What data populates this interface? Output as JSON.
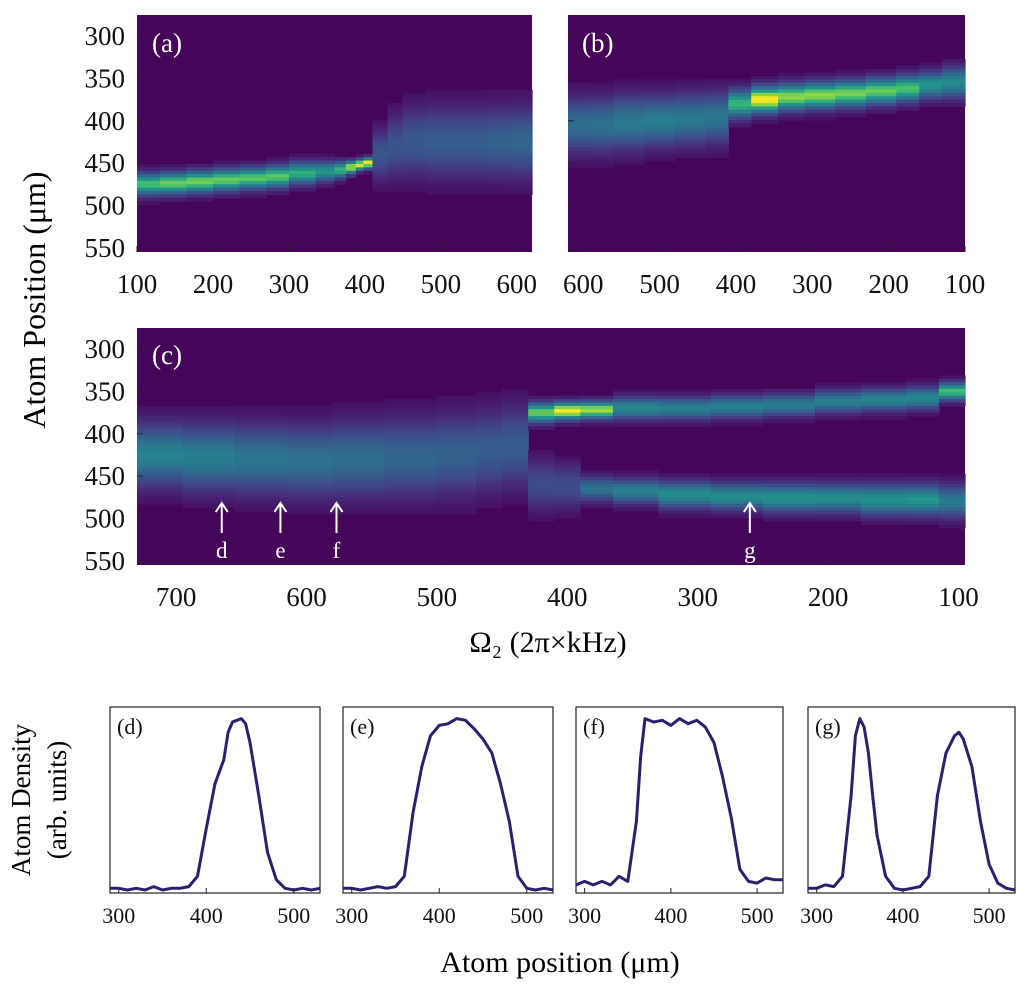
{
  "figure": {
    "shared_ylabel_heatmaps": "Atom Position (μm)",
    "shared_ylabel_profiles": [
      "Atom Density",
      "(arb. units)"
    ],
    "xlabel_heatmaps": "Ω₂ (2π×kHz)",
    "xlabel_profiles": "Atom position (μm)"
  },
  "colors": {
    "viridis_low": "#440154",
    "viridis_background": "#3b0f70",
    "line": "#2e1f6e",
    "arrow": "#ffffff"
  },
  "chart_data": [
    {
      "id": "a",
      "type": "heatmap",
      "panel_label": "(a)",
      "x_range": [
        100,
        620
      ],
      "x_ticks": [
        100,
        200,
        300,
        400,
        500,
        600
      ],
      "y_range": [
        275,
        555
      ],
      "y_ticks": [
        300,
        350,
        400,
        450,
        500,
        550
      ],
      "y_reversed": true,
      "columns": [
        {
          "x0": 100,
          "x1": 130,
          "c": 475,
          "w": 20,
          "a": 0.75
        },
        {
          "x0": 130,
          "x1": 165,
          "c": 474,
          "w": 20,
          "a": 0.8
        },
        {
          "x0": 165,
          "x1": 200,
          "c": 472,
          "w": 20,
          "a": 0.82
        },
        {
          "x0": 200,
          "x1": 235,
          "c": 470,
          "w": 20,
          "a": 0.8
        },
        {
          "x0": 235,
          "x1": 270,
          "c": 468,
          "w": 20,
          "a": 0.78
        },
        {
          "x0": 270,
          "x1": 300,
          "c": 466,
          "w": 20,
          "a": 0.78
        },
        {
          "x0": 300,
          "x1": 335,
          "c": 462,
          "w": 20,
          "a": 0.7
        },
        {
          "x0": 335,
          "x1": 360,
          "c": 460,
          "w": 18,
          "a": 0.62
        },
        {
          "x0": 360,
          "x1": 375,
          "c": 458,
          "w": 15,
          "a": 0.72
        },
        {
          "x0": 375,
          "x1": 388,
          "c": 455,
          "w": 12,
          "a": 0.88
        },
        {
          "x0": 388,
          "x1": 398,
          "c": 452,
          "w": 10,
          "a": 0.95
        },
        {
          "x0": 398,
          "x1": 410,
          "c": 450,
          "w": 10,
          "a": 0.98
        },
        {
          "x0": 410,
          "x1": 430,
          "c": 440,
          "w": 45,
          "a": 0.3
        },
        {
          "x0": 430,
          "x1": 450,
          "c": 430,
          "w": 55,
          "a": 0.3
        },
        {
          "x0": 450,
          "x1": 480,
          "c": 425,
          "w": 60,
          "a": 0.32
        },
        {
          "x0": 480,
          "x1": 520,
          "c": 425,
          "w": 62,
          "a": 0.34
        },
        {
          "x0": 520,
          "x1": 560,
          "c": 425,
          "w": 62,
          "a": 0.34
        },
        {
          "x0": 560,
          "x1": 590,
          "c": 425,
          "w": 62,
          "a": 0.36
        },
        {
          "x0": 590,
          "x1": 620,
          "c": 425,
          "w": 62,
          "a": 0.38
        }
      ]
    },
    {
      "id": "b",
      "type": "heatmap",
      "panel_label": "(b)",
      "x_range": [
        620,
        100
      ],
      "x_ticks": [
        600,
        500,
        400,
        300,
        200,
        100
      ],
      "y_range": [
        275,
        555
      ],
      "y_ticks": [
        300,
        350,
        400,
        450,
        500,
        550
      ],
      "y_reversed": true,
      "columns": [
        {
          "x0": 620,
          "x1": 590,
          "c": 405,
          "w": 48,
          "a": 0.42
        },
        {
          "x0": 590,
          "x1": 560,
          "c": 405,
          "w": 48,
          "a": 0.44
        },
        {
          "x0": 560,
          "x1": 520,
          "c": 402,
          "w": 48,
          "a": 0.48
        },
        {
          "x0": 520,
          "x1": 480,
          "c": 400,
          "w": 45,
          "a": 0.5
        },
        {
          "x0": 480,
          "x1": 440,
          "c": 398,
          "w": 45,
          "a": 0.48
        },
        {
          "x0": 440,
          "x1": 410,
          "c": 396,
          "w": 45,
          "a": 0.46
        },
        {
          "x0": 410,
          "x1": 380,
          "c": 380,
          "w": 26,
          "a": 0.72
        },
        {
          "x0": 380,
          "x1": 345,
          "c": 375,
          "w": 24,
          "a": 0.98
        },
        {
          "x0": 345,
          "x1": 310,
          "c": 372,
          "w": 24,
          "a": 0.85
        },
        {
          "x0": 310,
          "x1": 270,
          "c": 370,
          "w": 24,
          "a": 0.85
        },
        {
          "x0": 270,
          "x1": 230,
          "c": 368,
          "w": 24,
          "a": 0.82
        },
        {
          "x0": 230,
          "x1": 190,
          "c": 365,
          "w": 24,
          "a": 0.8
        },
        {
          "x0": 190,
          "x1": 160,
          "c": 362,
          "w": 24,
          "a": 0.76
        },
        {
          "x0": 160,
          "x1": 130,
          "c": 358,
          "w": 24,
          "a": 0.62
        },
        {
          "x0": 130,
          "x1": 100,
          "c": 355,
          "w": 28,
          "a": 0.56
        }
      ]
    },
    {
      "id": "c",
      "type": "heatmap",
      "panel_label": "(c)",
      "x_range": [
        730,
        95
      ],
      "x_ticks": [
        700,
        600,
        500,
        400,
        300,
        200,
        100
      ],
      "y_range": [
        275,
        555
      ],
      "y_ticks": [
        300,
        350,
        400,
        450,
        500,
        550
      ],
      "y_reversed": true,
      "arrows": [
        {
          "x": 665,
          "label": "d"
        },
        {
          "x": 620,
          "label": "e"
        },
        {
          "x": 577,
          "label": "f"
        },
        {
          "x": 260,
          "label": "g"
        }
      ],
      "columns": [
        {
          "x0": 730,
          "x1": 695,
          "c": 425,
          "w": 55,
          "a": 0.52
        },
        {
          "x0": 695,
          "x1": 655,
          "c": 428,
          "w": 58,
          "a": 0.5
        },
        {
          "x0": 655,
          "x1": 615,
          "c": 430,
          "w": 60,
          "a": 0.46
        },
        {
          "x0": 615,
          "x1": 580,
          "c": 432,
          "w": 62,
          "a": 0.44
        },
        {
          "x0": 580,
          "x1": 540,
          "c": 430,
          "w": 65,
          "a": 0.42
        },
        {
          "x0": 540,
          "x1": 500,
          "c": 428,
          "w": 68,
          "a": 0.38
        },
        {
          "x0": 500,
          "x1": 470,
          "c": 425,
          "w": 70,
          "a": 0.36
        },
        {
          "x0": 470,
          "x1": 450,
          "c": 420,
          "w": 70,
          "a": 0.34
        },
        {
          "x0": 450,
          "x1": 430,
          "c": 415,
          "w": 70,
          "a": 0.34
        },
        {
          "x0": 430,
          "x1": 410,
          "c": 375,
          "w": 18,
          "a": 0.8,
          "c2": 460,
          "w2": 45,
          "a2": 0.26
        },
        {
          "x0": 410,
          "x1": 390,
          "c": 373,
          "w": 16,
          "a": 0.98,
          "c2": 462,
          "w2": 40,
          "a2": 0.26
        },
        {
          "x0": 390,
          "x1": 365,
          "c": 372,
          "w": 16,
          "a": 0.88,
          "c2": 465,
          "w2": 22,
          "a2": 0.44
        },
        {
          "x0": 365,
          "x1": 330,
          "c": 370,
          "w": 20,
          "a": 0.56,
          "c2": 468,
          "w2": 22,
          "a2": 0.52
        },
        {
          "x0": 330,
          "x1": 290,
          "c": 370,
          "w": 20,
          "a": 0.52,
          "c2": 472,
          "w2": 24,
          "a2": 0.58
        },
        {
          "x0": 290,
          "x1": 250,
          "c": 368,
          "w": 20,
          "a": 0.52,
          "c2": 474,
          "w2": 24,
          "a2": 0.58
        },
        {
          "x0": 250,
          "x1": 210,
          "c": 366,
          "w": 20,
          "a": 0.5,
          "c2": 476,
          "w2": 26,
          "a2": 0.6
        },
        {
          "x0": 210,
          "x1": 175,
          "c": 362,
          "w": 20,
          "a": 0.52,
          "c2": 476,
          "w2": 26,
          "a2": 0.58
        },
        {
          "x0": 175,
          "x1": 140,
          "c": 360,
          "w": 20,
          "a": 0.54,
          "c2": 478,
          "w2": 28,
          "a2": 0.6
        },
        {
          "x0": 140,
          "x1": 115,
          "c": 358,
          "w": 20,
          "a": 0.55,
          "c2": 478,
          "w2": 28,
          "a2": 0.62
        },
        {
          "x0": 115,
          "x1": 95,
          "c": 350,
          "w": 16,
          "a": 0.75,
          "c2": 480,
          "w2": 30,
          "a2": 0.48
        }
      ]
    },
    {
      "id": "d",
      "type": "line",
      "panel_label": "(d)",
      "xlim": [
        290,
        530
      ],
      "x_ticks": [
        300,
        400,
        500
      ],
      "ylim": [
        0,
        1.05
      ],
      "x": [
        290,
        300,
        310,
        320,
        330,
        340,
        350,
        360,
        370,
        380,
        390,
        400,
        410,
        420,
        425,
        430,
        435,
        440,
        445,
        450,
        460,
        470,
        480,
        490,
        500,
        510,
        520,
        530
      ],
      "y": [
        0.01,
        0.01,
        0.0,
        0.01,
        0.0,
        0.02,
        0.0,
        0.01,
        0.01,
        0.02,
        0.08,
        0.36,
        0.62,
        0.76,
        0.92,
        0.98,
        0.99,
        1.0,
        0.97,
        0.86,
        0.55,
        0.22,
        0.06,
        0.01,
        0.0,
        0.01,
        0.0,
        0.01
      ]
    },
    {
      "id": "e",
      "type": "line",
      "panel_label": "(e)",
      "xlim": [
        290,
        530
      ],
      "x_ticks": [
        300,
        400,
        500
      ],
      "ylim": [
        0,
        1.05
      ],
      "x": [
        290,
        300,
        310,
        320,
        330,
        340,
        350,
        360,
        370,
        380,
        390,
        400,
        410,
        420,
        430,
        440,
        450,
        460,
        470,
        480,
        490,
        500,
        510,
        520,
        530
      ],
      "y": [
        0.01,
        0.01,
        0.0,
        0.01,
        0.02,
        0.01,
        0.02,
        0.08,
        0.45,
        0.72,
        0.9,
        0.96,
        0.97,
        1.0,
        0.99,
        0.94,
        0.88,
        0.8,
        0.62,
        0.4,
        0.08,
        0.01,
        0.0,
        0.01,
        0.0
      ],
      "values_note": "profile (e)"
    },
    {
      "id": "f",
      "type": "line",
      "panel_label": "(f)",
      "xlim": [
        290,
        530
      ],
      "x_ticks": [
        300,
        400,
        500
      ],
      "ylim": [
        0,
        1.05
      ],
      "x": [
        290,
        300,
        310,
        320,
        330,
        340,
        350,
        360,
        365,
        370,
        380,
        390,
        400,
        410,
        420,
        430,
        440,
        450,
        460,
        470,
        480,
        490,
        500,
        510,
        520,
        530
      ],
      "y": [
        0.03,
        0.05,
        0.03,
        0.05,
        0.03,
        0.08,
        0.05,
        0.4,
        0.78,
        1.0,
        0.98,
        0.99,
        0.96,
        1.0,
        0.97,
        0.99,
        0.95,
        0.86,
        0.66,
        0.42,
        0.12,
        0.05,
        0.04,
        0.07,
        0.06,
        0.06
      ]
    },
    {
      "id": "g",
      "type": "line",
      "panel_label": "(g)",
      "xlim": [
        290,
        530
      ],
      "x_ticks": [
        300,
        400,
        500
      ],
      "ylim": [
        0,
        1.05
      ],
      "x": [
        290,
        300,
        310,
        320,
        330,
        340,
        345,
        350,
        355,
        360,
        365,
        370,
        380,
        390,
        400,
        410,
        420,
        430,
        440,
        450,
        460,
        465,
        470,
        480,
        490,
        500,
        510,
        520,
        530
      ],
      "y": [
        0.01,
        0.01,
        0.03,
        0.02,
        0.08,
        0.55,
        0.9,
        1.0,
        0.95,
        0.8,
        0.55,
        0.32,
        0.08,
        0.01,
        0.0,
        0.01,
        0.02,
        0.08,
        0.55,
        0.8,
        0.9,
        0.92,
        0.88,
        0.72,
        0.4,
        0.15,
        0.04,
        0.01,
        0.0
      ]
    }
  ]
}
